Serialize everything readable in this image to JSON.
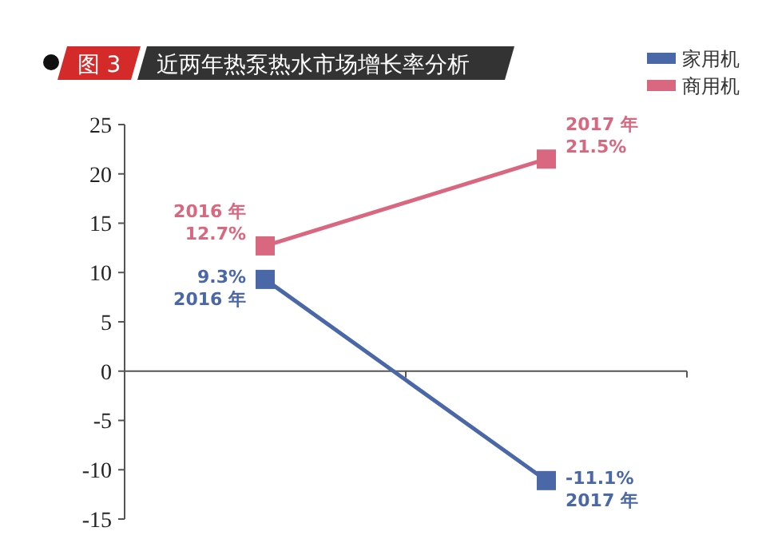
{
  "chart_data": {
    "type": "line",
    "title": "近两年热泵热水市场增长率分析",
    "annotations": [
      "图 3"
    ],
    "categories": [
      null,
      null
    ],
    "ylim": [
      -15,
      25
    ],
    "yticks": [
      -15,
      -10,
      -5,
      0,
      5,
      10,
      15,
      20,
      25
    ],
    "legend": "top right",
    "marker": "square",
    "line_style": "solid",
    "series": [
      {
        "name": "家用机",
        "color": "#4a67a8",
        "values": [
          9.3,
          -11.1
        ],
        "value_labels": [
          "9.3%\n2016 年",
          "-11.1%\n2017 年"
        ]
      },
      {
        "name": "商用机",
        "color": "#d9677f",
        "values": [
          12.7,
          21.5
        ],
        "value_labels": [
          "2016 年\n12.7%",
          "2017 年\n21.5%"
        ]
      }
    ]
  }
}
